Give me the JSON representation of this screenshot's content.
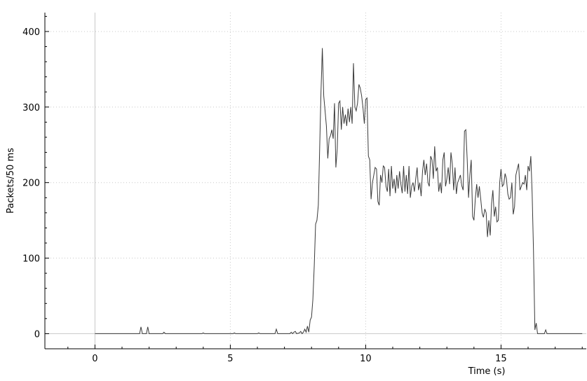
{
  "chart_data": {
    "type": "line",
    "title": "",
    "xlabel": "Time (s)",
    "ylabel": "Packets/50 ms",
    "xlim": [
      -1.85,
      18.15
    ],
    "ylim": [
      -20,
      425
    ],
    "x_ticks": [
      0,
      5,
      10,
      15
    ],
    "y_ticks": [
      0,
      100,
      200,
      300,
      400
    ],
    "x_minor_step": 1,
    "grid": true,
    "legend": "none",
    "line_color": "#3a3a3a",
    "series": [
      {
        "values": [
          [
            0,
            0
          ],
          [
            1.65,
            0
          ],
          [
            1.7,
            9
          ],
          [
            1.75,
            0
          ],
          [
            1.9,
            0
          ],
          [
            1.95,
            9
          ],
          [
            2.0,
            0
          ],
          [
            2.5,
            0
          ],
          [
            2.55,
            2
          ],
          [
            2.6,
            0
          ],
          [
            3.95,
            0
          ],
          [
            4.0,
            1
          ],
          [
            4.05,
            0
          ],
          [
            5.1,
            0
          ],
          [
            5.15,
            1
          ],
          [
            5.2,
            0
          ],
          [
            6.0,
            0
          ],
          [
            6.05,
            1
          ],
          [
            6.1,
            0
          ],
          [
            6.65,
            0
          ],
          [
            6.7,
            6
          ],
          [
            6.75,
            0
          ],
          [
            7.2,
            0
          ],
          [
            7.25,
            2
          ],
          [
            7.3,
            0
          ],
          [
            7.35,
            2
          ],
          [
            7.4,
            3
          ],
          [
            7.45,
            0
          ],
          [
            7.55,
            1
          ],
          [
            7.6,
            3
          ],
          [
            7.65,
            0
          ],
          [
            7.7,
            2
          ],
          [
            7.75,
            6
          ],
          [
            7.8,
            2
          ],
          [
            7.85,
            10
          ],
          [
            7.9,
            2
          ],
          [
            7.95,
            18
          ],
          [
            8.0,
            22
          ],
          [
            8.05,
            45
          ],
          [
            8.1,
            90
          ],
          [
            8.15,
            145
          ],
          [
            8.2,
            150
          ],
          [
            8.25,
            170
          ],
          [
            8.3,
            245
          ],
          [
            8.35,
            320
          ],
          [
            8.4,
            378
          ],
          [
            8.45,
            315
          ],
          [
            8.5,
            295
          ],
          [
            8.55,
            275
          ],
          [
            8.6,
            232
          ],
          [
            8.65,
            258
          ],
          [
            8.7,
            262
          ],
          [
            8.75,
            270
          ],
          [
            8.8,
            258
          ],
          [
            8.85,
            305
          ],
          [
            8.9,
            220
          ],
          [
            8.95,
            245
          ],
          [
            9.0,
            305
          ],
          [
            9.05,
            308
          ],
          [
            9.1,
            270
          ],
          [
            9.15,
            300
          ],
          [
            9.2,
            278
          ],
          [
            9.25,
            290
          ],
          [
            9.3,
            275
          ],
          [
            9.35,
            298
          ],
          [
            9.4,
            280
          ],
          [
            9.45,
            300
          ],
          [
            9.5,
            278
          ],
          [
            9.55,
            358
          ],
          [
            9.6,
            300
          ],
          [
            9.65,
            295
          ],
          [
            9.7,
            305
          ],
          [
            9.75,
            330
          ],
          [
            9.8,
            325
          ],
          [
            9.85,
            315
          ],
          [
            9.9,
            300
          ],
          [
            9.95,
            278
          ],
          [
            10.0,
            310
          ],
          [
            10.05,
            312
          ],
          [
            10.1,
            235
          ],
          [
            10.15,
            230
          ],
          [
            10.2,
            178
          ],
          [
            10.25,
            200
          ],
          [
            10.3,
            210
          ],
          [
            10.35,
            220
          ],
          [
            10.4,
            218
          ],
          [
            10.45,
            175
          ],
          [
            10.5,
            170
          ],
          [
            10.55,
            210
          ],
          [
            10.6,
            200
          ],
          [
            10.65,
            222
          ],
          [
            10.7,
            220
          ],
          [
            10.75,
            195
          ],
          [
            10.8,
            188
          ],
          [
            10.85,
            218
          ],
          [
            10.9,
            182
          ],
          [
            10.95,
            222
          ],
          [
            11.0,
            192
          ],
          [
            11.05,
            205
          ],
          [
            11.1,
            186
          ],
          [
            11.15,
            210
          ],
          [
            11.2,
            192
          ],
          [
            11.25,
            215
          ],
          [
            11.3,
            198
          ],
          [
            11.35,
            186
          ],
          [
            11.4,
            222
          ],
          [
            11.45,
            188
          ],
          [
            11.5,
            210
          ],
          [
            11.55,
            185
          ],
          [
            11.6,
            222
          ],
          [
            11.65,
            180
          ],
          [
            11.7,
            195
          ],
          [
            11.75,
            200
          ],
          [
            11.8,
            188
          ],
          [
            11.85,
            205
          ],
          [
            11.9,
            220
          ],
          [
            11.95,
            190
          ],
          [
            12.0,
            200
          ],
          [
            12.05,
            182
          ],
          [
            12.1,
            215
          ],
          [
            12.15,
            230
          ],
          [
            12.2,
            210
          ],
          [
            12.25,
            225
          ],
          [
            12.3,
            200
          ],
          [
            12.35,
            195
          ],
          [
            12.4,
            235
          ],
          [
            12.45,
            230
          ],
          [
            12.5,
            205
          ],
          [
            12.55,
            248
          ],
          [
            12.6,
            215
          ],
          [
            12.65,
            220
          ],
          [
            12.7,
            188
          ],
          [
            12.75,
            200
          ],
          [
            12.8,
            186
          ],
          [
            12.85,
            230
          ],
          [
            12.9,
            240
          ],
          [
            12.95,
            195
          ],
          [
            13.0,
            205
          ],
          [
            13.05,
            220
          ],
          [
            13.1,
            198
          ],
          [
            13.15,
            240
          ],
          [
            13.2,
            225
          ],
          [
            13.25,
            190
          ],
          [
            13.3,
            220
          ],
          [
            13.35,
            185
          ],
          [
            13.4,
            200
          ],
          [
            13.45,
            205
          ],
          [
            13.5,
            210
          ],
          [
            13.55,
            196
          ],
          [
            13.6,
            190
          ],
          [
            13.65,
            268
          ],
          [
            13.7,
            270
          ],
          [
            13.75,
            230
          ],
          [
            13.8,
            180
          ],
          [
            13.85,
            210
          ],
          [
            13.9,
            230
          ],
          [
            13.95,
            155
          ],
          [
            14.0,
            150
          ],
          [
            14.05,
            178
          ],
          [
            14.1,
            198
          ],
          [
            14.15,
            180
          ],
          [
            14.2,
            195
          ],
          [
            14.25,
            178
          ],
          [
            14.3,
            160
          ],
          [
            14.35,
            154
          ],
          [
            14.4,
            165
          ],
          [
            14.45,
            160
          ],
          [
            14.5,
            128
          ],
          [
            14.55,
            150
          ],
          [
            14.6,
            130
          ],
          [
            14.65,
            172
          ],
          [
            14.7,
            190
          ],
          [
            14.75,
            155
          ],
          [
            14.8,
            168
          ],
          [
            14.85,
            148
          ],
          [
            14.9,
            150
          ],
          [
            14.95,
            200
          ],
          [
            15.0,
            218
          ],
          [
            15.05,
            195
          ],
          [
            15.1,
            198
          ],
          [
            15.15,
            212
          ],
          [
            15.2,
            205
          ],
          [
            15.25,
            185
          ],
          [
            15.3,
            178
          ],
          [
            15.35,
            180
          ],
          [
            15.4,
            200
          ],
          [
            15.45,
            158
          ],
          [
            15.5,
            168
          ],
          [
            15.55,
            210
          ],
          [
            15.6,
            218
          ],
          [
            15.65,
            225
          ],
          [
            15.7,
            190
          ],
          [
            15.75,
            195
          ],
          [
            15.8,
            200
          ],
          [
            15.85,
            198
          ],
          [
            15.9,
            210
          ],
          [
            15.95,
            190
          ],
          [
            16.0,
            222
          ],
          [
            16.05,
            215
          ],
          [
            16.1,
            235
          ],
          [
            16.15,
            185
          ],
          [
            16.2,
            110
          ],
          [
            16.25,
            5
          ],
          [
            16.3,
            14
          ],
          [
            16.35,
            0
          ],
          [
            16.6,
            0
          ],
          [
            16.65,
            5
          ],
          [
            16.7,
            0
          ],
          [
            17.1,
            0
          ],
          [
            18.0,
            0
          ]
        ]
      }
    ]
  }
}
